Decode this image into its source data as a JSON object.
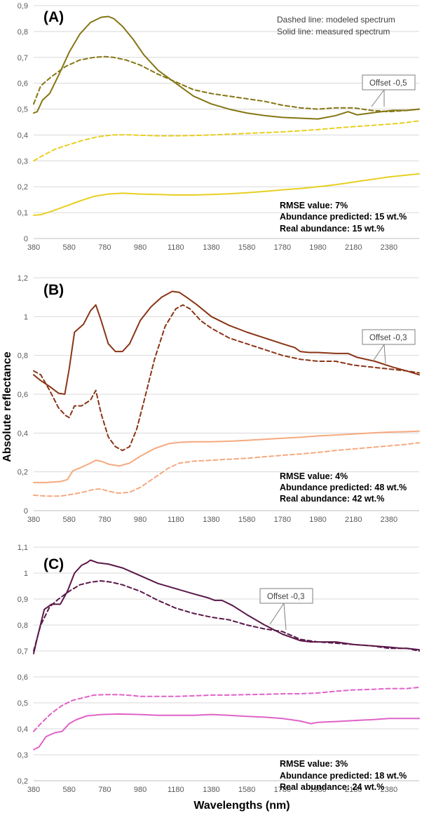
{
  "figure": {
    "ylabel": "Absolute reflectance",
    "xlabel": "Wavelengths (nm)"
  },
  "chart_data": [
    {
      "type": "line",
      "panel_label": "(A)",
      "xlabel": "Wavelengths (nm)",
      "ylabel": "Absolute reflectance",
      "xlim": [
        380,
        2550
      ],
      "ylim": [
        0,
        0.9
      ],
      "x_ticks": [
        380,
        580,
        780,
        980,
        1180,
        1380,
        1580,
        1780,
        1980,
        2180,
        2380
      ],
      "y_ticks": [
        0,
        0.1,
        0.2,
        0.3,
        0.4,
        0.5,
        0.6,
        0.7,
        0.8,
        0.9
      ],
      "y_tick_labels": [
        "0",
        "0,1",
        "0,2",
        "0,3",
        "0,4",
        "0,5",
        "0,6",
        "0,7",
        "0,8",
        "0,9"
      ],
      "legend_lines": [
        "Dashed line: modeled spectrum",
        "Solid line: measured spectrum"
      ],
      "offset_label": "Offset -0,5",
      "stats": [
        "RMSE value: 7%",
        "Abundance predicted: 15 wt.%",
        "Real abundance:  15 wt.%"
      ],
      "series": [
        {
          "name": "Measured (offset)",
          "style": "solid",
          "color": "#857613",
          "x": [
            380,
            400,
            430,
            470,
            520,
            580,
            640,
            700,
            760,
            800,
            830,
            880,
            940,
            1000,
            1080,
            1180,
            1280,
            1380,
            1480,
            1580,
            1680,
            1780,
            1880,
            1980,
            2080,
            2150,
            2200,
            2300,
            2400,
            2480,
            2550
          ],
          "y": [
            0.485,
            0.49,
            0.535,
            0.56,
            0.63,
            0.72,
            0.79,
            0.835,
            0.855,
            0.858,
            0.85,
            0.82,
            0.77,
            0.71,
            0.65,
            0.6,
            0.55,
            0.52,
            0.5,
            0.485,
            0.475,
            0.468,
            0.465,
            0.462,
            0.475,
            0.49,
            0.478,
            0.487,
            0.495,
            0.495,
            0.5
          ]
        },
        {
          "name": "Modeled (offset)",
          "style": "dashed",
          "color": "#857613",
          "x": [
            380,
            420,
            480,
            560,
            640,
            720,
            780,
            830,
            900,
            980,
            1080,
            1180,
            1280,
            1380,
            1480,
            1580,
            1680,
            1780,
            1880,
            1980,
            2080,
            2180,
            2280,
            2380,
            2480,
            2550
          ],
          "y": [
            0.52,
            0.59,
            0.625,
            0.665,
            0.69,
            0.7,
            0.703,
            0.7,
            0.69,
            0.67,
            0.635,
            0.605,
            0.575,
            0.56,
            0.55,
            0.54,
            0.53,
            0.515,
            0.505,
            0.5,
            0.505,
            0.505,
            0.495,
            0.49,
            0.495,
            0.5
          ]
        },
        {
          "name": "Measured",
          "style": "solid",
          "color": "#e8cf22",
          "x": [
            380,
            420,
            480,
            560,
            640,
            720,
            800,
            880,
            980,
            1080,
            1180,
            1280,
            1380,
            1480,
            1580,
            1680,
            1780,
            1880,
            1980,
            2080,
            2180,
            2280,
            2380,
            2480,
            2550
          ],
          "y": [
            0.09,
            0.092,
            0.105,
            0.125,
            0.145,
            0.163,
            0.172,
            0.175,
            0.172,
            0.17,
            0.168,
            0.168,
            0.17,
            0.173,
            0.177,
            0.182,
            0.188,
            0.193,
            0.2,
            0.208,
            0.218,
            0.228,
            0.238,
            0.245,
            0.25
          ]
        },
        {
          "name": "Modeled",
          "style": "dashed",
          "color": "#e8cf22",
          "x": [
            380,
            430,
            500,
            580,
            660,
            740,
            820,
            900,
            980,
            1080,
            1180,
            1280,
            1380,
            1480,
            1580,
            1680,
            1780,
            1880,
            1980,
            2080,
            2180,
            2280,
            2380,
            2480,
            2550
          ],
          "y": [
            0.3,
            0.32,
            0.345,
            0.363,
            0.38,
            0.393,
            0.4,
            0.401,
            0.399,
            0.397,
            0.397,
            0.398,
            0.4,
            0.403,
            0.406,
            0.409,
            0.412,
            0.416,
            0.421,
            0.427,
            0.432,
            0.437,
            0.442,
            0.448,
            0.455
          ]
        }
      ]
    },
    {
      "type": "line",
      "panel_label": "(B)",
      "xlabel": "Wavelengths (nm)",
      "ylabel": "Absolute reflectance",
      "xlim": [
        380,
        2550
      ],
      "ylim": [
        0,
        1.2
      ],
      "x_ticks": [
        380,
        580,
        780,
        980,
        1180,
        1380,
        1580,
        1780,
        1980,
        2180,
        2380
      ],
      "y_ticks": [
        0,
        0.2,
        0.4,
        0.6,
        0.8,
        1.0,
        1.2
      ],
      "y_tick_labels": [
        "0",
        "0,2",
        "0,4",
        "0,6",
        "0,8",
        "1",
        "1,2"
      ],
      "offset_label": "Offset -0,3",
      "stats": [
        "RMSE value: 4%",
        "Abundance predicted: 48 wt.%",
        "Real abundance:  42 wt.%"
      ],
      "series": [
        {
          "name": "Measured (offset)",
          "style": "solid",
          "color": "#8a3516",
          "x": [
            380,
            420,
            470,
            520,
            555,
            580,
            610,
            660,
            700,
            730,
            760,
            800,
            840,
            880,
            920,
            980,
            1040,
            1100,
            1160,
            1200,
            1240,
            1300,
            1380,
            1480,
            1580,
            1680,
            1780,
            1850,
            1880,
            1930,
            1980,
            2080,
            2150,
            2200,
            2300,
            2400,
            2480,
            2550
          ],
          "y": [
            0.7,
            0.67,
            0.64,
            0.605,
            0.6,
            0.73,
            0.92,
            0.96,
            1.03,
            1.06,
            0.98,
            0.86,
            0.82,
            0.82,
            0.86,
            0.98,
            1.05,
            1.1,
            1.13,
            1.125,
            1.1,
            1.06,
            1.0,
            0.955,
            0.92,
            0.89,
            0.86,
            0.84,
            0.82,
            0.815,
            0.815,
            0.81,
            0.81,
            0.79,
            0.77,
            0.74,
            0.72,
            0.7
          ]
        },
        {
          "name": "Modeled (offset)",
          "style": "dashed",
          "color": "#8a3516",
          "x": [
            380,
            420,
            470,
            520,
            560,
            580,
            610,
            650,
            700,
            730,
            760,
            800,
            840,
            880,
            920,
            960,
            1000,
            1060,
            1120,
            1180,
            1220,
            1260,
            1320,
            1380,
            1480,
            1580,
            1680,
            1780,
            1880,
            1980,
            2080,
            2180,
            2280,
            2380,
            2480,
            2550
          ],
          "y": [
            0.72,
            0.7,
            0.62,
            0.53,
            0.49,
            0.48,
            0.54,
            0.54,
            0.57,
            0.62,
            0.5,
            0.38,
            0.33,
            0.31,
            0.33,
            0.42,
            0.56,
            0.78,
            0.95,
            1.04,
            1.06,
            1.04,
            0.98,
            0.94,
            0.89,
            0.86,
            0.83,
            0.8,
            0.78,
            0.77,
            0.77,
            0.75,
            0.74,
            0.73,
            0.72,
            0.71
          ]
        },
        {
          "name": "Measured",
          "style": "solid",
          "color": "#f5a97f",
          "x": [
            380,
            450,
            530,
            570,
            600,
            640,
            700,
            730,
            760,
            800,
            860,
            920,
            980,
            1060,
            1140,
            1200,
            1280,
            1380,
            1480,
            1580,
            1680,
            1780,
            1880,
            1980,
            2080,
            2180,
            2280,
            2380,
            2480,
            2550
          ],
          "y": [
            0.145,
            0.145,
            0.15,
            0.16,
            0.205,
            0.22,
            0.245,
            0.26,
            0.255,
            0.24,
            0.23,
            0.245,
            0.28,
            0.32,
            0.345,
            0.352,
            0.355,
            0.355,
            0.358,
            0.362,
            0.368,
            0.373,
            0.378,
            0.385,
            0.39,
            0.395,
            0.4,
            0.405,
            0.407,
            0.41
          ]
        },
        {
          "name": "Modeled",
          "style": "dashed",
          "color": "#f5a97f",
          "x": [
            380,
            450,
            530,
            580,
            630,
            680,
            720,
            760,
            800,
            860,
            920,
            980,
            1060,
            1140,
            1200,
            1280,
            1380,
            1480,
            1580,
            1680,
            1780,
            1880,
            1980,
            2080,
            2180,
            2280,
            2380,
            2480,
            2550
          ],
          "y": [
            0.08,
            0.075,
            0.075,
            0.082,
            0.09,
            0.1,
            0.11,
            0.112,
            0.1,
            0.09,
            0.095,
            0.12,
            0.17,
            0.22,
            0.245,
            0.255,
            0.26,
            0.265,
            0.27,
            0.278,
            0.285,
            0.292,
            0.3,
            0.31,
            0.318,
            0.326,
            0.334,
            0.342,
            0.35
          ]
        }
      ]
    },
    {
      "type": "line",
      "panel_label": "(C)",
      "xlabel": "Wavelengths (nm)",
      "ylabel": "Absolute reflectance",
      "xlim": [
        380,
        2550
      ],
      "ylim": [
        0.2,
        1.1
      ],
      "x_ticks": [
        380,
        580,
        780,
        980,
        1180,
        1380,
        1580,
        1780,
        1980,
        2180,
        2380
      ],
      "y_ticks": [
        0.2,
        0.3,
        0.4,
        0.5,
        0.6,
        0.7,
        0.8,
        0.9,
        1.0,
        1.1
      ],
      "y_tick_labels": [
        "0,2",
        "0,3",
        "0,4",
        "0,5",
        "0,6",
        "0,7",
        "0,8",
        "0,9",
        "1",
        "1,1"
      ],
      "offset_label": "Offset -0,3",
      "stats": [
        "RMSE value: 3%",
        "Abundance predicted: 18 wt.%",
        "Real abundance:  24 wt.%"
      ],
      "series": [
        {
          "name": "Measured (offset)",
          "style": "solid",
          "color": "#5a1849",
          "x": [
            380,
            400,
            440,
            480,
            530,
            570,
            610,
            650,
            680,
            700,
            740,
            800,
            880,
            980,
            1080,
            1180,
            1280,
            1360,
            1400,
            1440,
            1500,
            1580,
            1680,
            1780,
            1880,
            1940,
            1980,
            2080,
            2180,
            2280,
            2380,
            2450,
            2480,
            2550
          ],
          "y": [
            0.69,
            0.75,
            0.86,
            0.88,
            0.88,
            0.93,
            1.0,
            1.03,
            1.04,
            1.05,
            1.04,
            1.035,
            1.02,
            0.99,
            0.96,
            0.94,
            0.92,
            0.905,
            0.895,
            0.895,
            0.875,
            0.84,
            0.8,
            0.765,
            0.74,
            0.735,
            0.735,
            0.735,
            0.725,
            0.72,
            0.715,
            0.71,
            0.71,
            0.705
          ]
        },
        {
          "name": "Modeled (offset)",
          "style": "dashed",
          "color": "#5a1849",
          "x": [
            380,
            420,
            470,
            520,
            580,
            640,
            700,
            760,
            820,
            880,
            980,
            1080,
            1180,
            1280,
            1380,
            1480,
            1580,
            1680,
            1780,
            1880,
            1980,
            2080,
            2180,
            2280,
            2380,
            2480,
            2550
          ],
          "y": [
            0.7,
            0.8,
            0.87,
            0.9,
            0.93,
            0.955,
            0.965,
            0.97,
            0.965,
            0.955,
            0.93,
            0.895,
            0.865,
            0.845,
            0.83,
            0.82,
            0.8,
            0.785,
            0.775,
            0.745,
            0.735,
            0.73,
            0.725,
            0.72,
            0.71,
            0.71,
            0.7
          ]
        },
        {
          "name": "Measured",
          "style": "solid",
          "color": "#e062c8",
          "x": [
            380,
            410,
            450,
            500,
            540,
            580,
            620,
            680,
            760,
            860,
            980,
            1080,
            1180,
            1280,
            1380,
            1480,
            1580,
            1680,
            1780,
            1880,
            1940,
            1980,
            2080,
            2180,
            2280,
            2380,
            2480,
            2550
          ],
          "y": [
            0.32,
            0.33,
            0.37,
            0.385,
            0.39,
            0.42,
            0.435,
            0.45,
            0.455,
            0.457,
            0.455,
            0.452,
            0.452,
            0.452,
            0.455,
            0.452,
            0.448,
            0.445,
            0.44,
            0.43,
            0.42,
            0.425,
            0.428,
            0.432,
            0.435,
            0.44,
            0.44,
            0.44
          ]
        },
        {
          "name": "Modeled",
          "style": "dashed",
          "color": "#e062c8",
          "x": [
            380,
            420,
            480,
            540,
            600,
            660,
            720,
            780,
            860,
            940,
            980,
            1080,
            1180,
            1280,
            1380,
            1480,
            1580,
            1680,
            1780,
            1880,
            1980,
            2080,
            2180,
            2280,
            2380,
            2480,
            2550
          ],
          "y": [
            0.39,
            0.42,
            0.46,
            0.49,
            0.51,
            0.52,
            0.53,
            0.532,
            0.532,
            0.528,
            0.525,
            0.525,
            0.525,
            0.527,
            0.53,
            0.53,
            0.532,
            0.533,
            0.535,
            0.535,
            0.538,
            0.545,
            0.55,
            0.552,
            0.555,
            0.555,
            0.56
          ]
        }
      ]
    }
  ]
}
